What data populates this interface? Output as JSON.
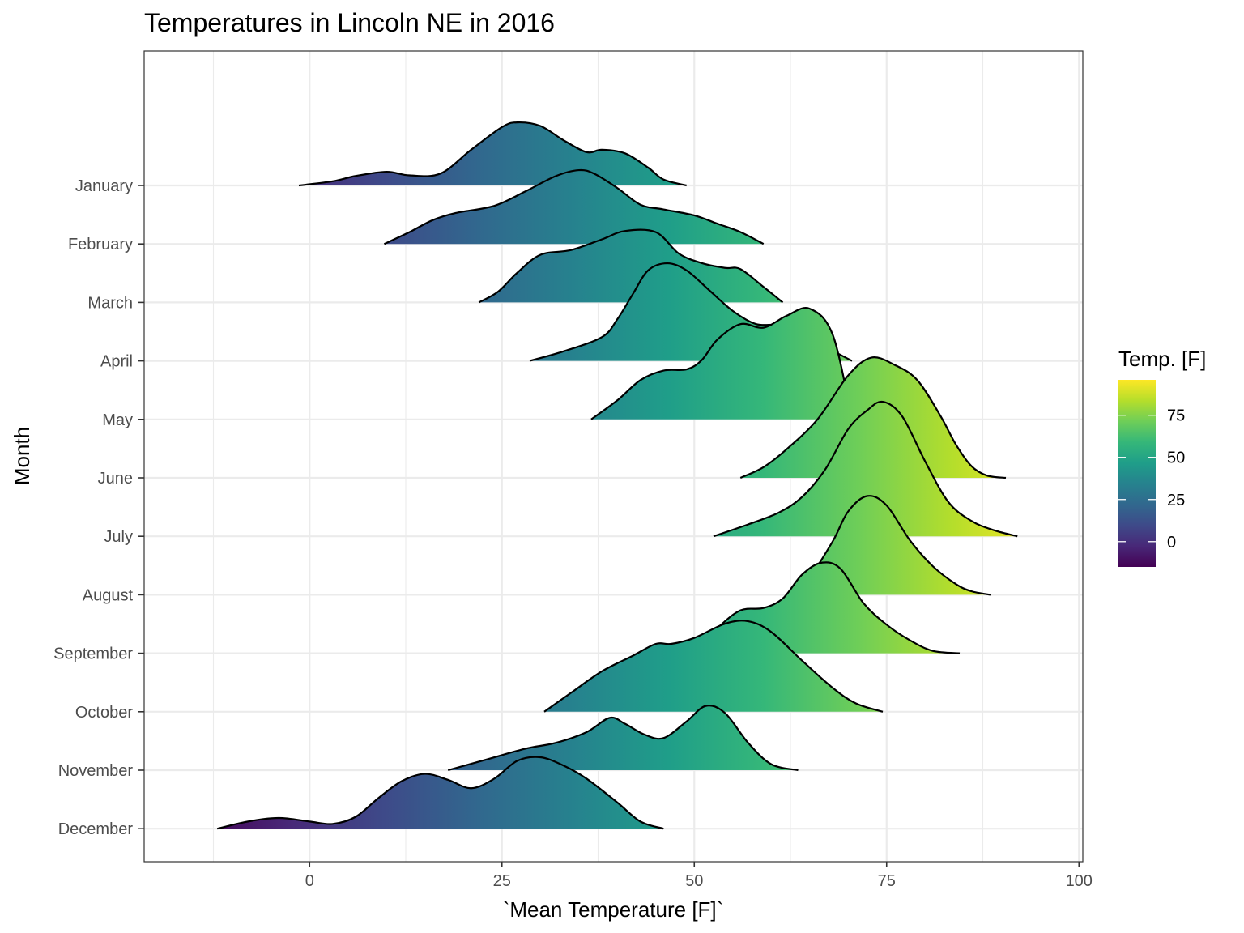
{
  "chart_data": {
    "type": "ridgeline",
    "title": "Temperatures in Lincoln NE in 2016",
    "xlabel": "`Mean Temperature [F]`",
    "ylabel": "Month",
    "xlim": [
      -21.5,
      100.5
    ],
    "x_ticks": [
      0,
      25,
      50,
      75,
      100
    ],
    "categories": [
      "January",
      "February",
      "March",
      "April",
      "May",
      "June",
      "July",
      "August",
      "September",
      "October",
      "November",
      "December"
    ],
    "grid": true,
    "legend": {
      "title": "Temp. [F]",
      "position": "right",
      "type": "colorbar",
      "range": [
        -15,
        96
      ],
      "ticks": [
        0,
        25,
        50,
        75
      ],
      "colors": [
        "#440154",
        "#482878",
        "#3e4a89",
        "#31688e",
        "#26828e",
        "#1f9e89",
        "#35b779",
        "#6ece58",
        "#b5de2b",
        "#fde725"
      ]
    },
    "series": [
      {
        "name": "January",
        "x": [
          -1.4,
          3,
          6,
          10,
          13,
          17,
          21,
          25,
          27,
          30,
          33,
          36,
          38,
          41,
          44,
          46,
          49
        ],
        "density": [
          0.0,
          0.35,
          0.8,
          1.15,
          0.85,
          1.0,
          3.0,
          4.9,
          5.3,
          5.0,
          3.8,
          2.8,
          3.0,
          2.7,
          1.5,
          0.5,
          0.0
        ]
      },
      {
        "name": "February",
        "x": [
          9.7,
          13,
          16,
          19,
          24,
          28,
          32,
          35,
          37,
          40,
          43,
          46,
          50,
          53,
          56,
          59
        ],
        "density": [
          0.0,
          1.0,
          2.0,
          2.6,
          3.2,
          4.4,
          5.7,
          6.2,
          5.9,
          4.7,
          3.3,
          2.9,
          2.4,
          1.7,
          1.0,
          0.0
        ]
      },
      {
        "name": "March",
        "x": [
          22,
          24.5,
          27,
          30,
          34,
          38,
          41,
          45,
          48,
          51,
          54,
          56,
          59,
          61.5
        ],
        "density": [
          0.0,
          0.9,
          2.5,
          4.0,
          4.4,
          5.3,
          6.0,
          5.9,
          4.1,
          3.3,
          2.9,
          2.8,
          1.3,
          0.0
        ]
      },
      {
        "name": "April",
        "x": [
          28.6,
          33,
          38,
          40,
          42,
          44,
          46.5,
          49,
          52,
          55,
          58,
          61,
          64,
          67,
          70.5
        ],
        "density": [
          0.0,
          0.8,
          2.0,
          3.5,
          5.6,
          7.6,
          8.2,
          7.6,
          5.9,
          4.2,
          3.1,
          3.0,
          2.4,
          1.2,
          0.0
        ]
      },
      {
        "name": "May",
        "x": [
          36.6,
          40,
          43,
          46,
          49,
          51,
          53,
          56,
          59,
          62,
          65,
          68,
          70.5
        ],
        "density": [
          0.0,
          1.6,
          3.3,
          4.1,
          4.2,
          5.0,
          6.7,
          8.0,
          7.7,
          8.7,
          9.3,
          7.1,
          0.0
        ]
      },
      {
        "name": "June",
        "x": [
          56,
          59,
          62,
          66,
          70,
          73,
          76,
          79,
          82,
          84,
          86,
          88,
          90.5
        ],
        "density": [
          0.0,
          0.9,
          2.4,
          4.9,
          8.6,
          10.1,
          9.5,
          8.2,
          5.2,
          2.8,
          1.0,
          0.2,
          0.0
        ]
      },
      {
        "name": "July",
        "x": [
          52.5,
          57,
          61,
          64,
          67,
          70,
          72.5,
          74.5,
          77,
          80,
          83,
          86,
          89,
          92
        ],
        "density": [
          0.0,
          1.0,
          2.0,
          3.3,
          5.6,
          9.0,
          10.6,
          11.3,
          10.1,
          6.3,
          2.9,
          1.3,
          0.5,
          0.0
        ]
      },
      {
        "name": "August",
        "x": [
          62.5,
          65,
          68,
          70,
          72.5,
          75,
          78,
          81,
          84,
          86,
          88.5
        ],
        "density": [
          0.0,
          1.5,
          4.5,
          7.0,
          8.3,
          7.5,
          4.6,
          2.4,
          0.9,
          0.3,
          0.0
        ]
      },
      {
        "name": "September",
        "x": [
          50,
          53,
          56,
          59,
          61.5,
          64,
          66.5,
          69,
          72,
          75,
          78,
          81,
          84.5
        ],
        "density": [
          0.0,
          2.1,
          3.6,
          3.8,
          4.6,
          6.6,
          7.6,
          7.1,
          4.2,
          2.4,
          1.1,
          0.2,
          0.0
        ]
      },
      {
        "name": "October",
        "x": [
          30.5,
          34,
          38,
          42,
          45,
          47,
          50,
          54,
          57,
          60,
          64,
          68,
          71,
          74.5
        ],
        "density": [
          0.0,
          1.6,
          3.4,
          4.7,
          5.7,
          5.7,
          6.2,
          7.4,
          7.6,
          6.7,
          4.3,
          2.0,
          0.7,
          0.0
        ]
      },
      {
        "name": "November",
        "x": [
          18,
          23,
          28,
          32,
          36,
          39,
          41,
          43.5,
          46,
          49,
          51.5,
          54,
          57,
          60,
          63.5
        ],
        "density": [
          0.0,
          0.9,
          1.8,
          2.3,
          3.2,
          4.4,
          3.9,
          3.0,
          2.7,
          4.1,
          5.4,
          4.8,
          2.3,
          0.5,
          0.0
        ]
      },
      {
        "name": "December",
        "x": [
          -12,
          -8,
          -4,
          0,
          3,
          6,
          9,
          12,
          15,
          18,
          21,
          24,
          27,
          30,
          33,
          36,
          40,
          43,
          46
        ],
        "density": [
          0.0,
          0.6,
          0.9,
          0.6,
          0.4,
          1.0,
          2.6,
          4.0,
          4.6,
          4.1,
          3.4,
          4.2,
          5.7,
          6.0,
          5.3,
          4.2,
          2.2,
          0.6,
          0.0
        ]
      }
    ]
  }
}
